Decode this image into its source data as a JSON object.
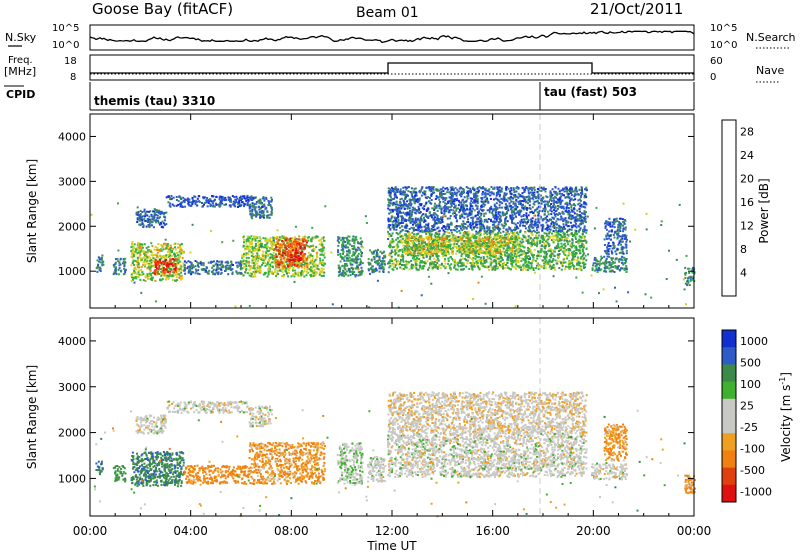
{
  "header": {
    "station": "Goose Bay (fitACF)",
    "beam": "Beam 01",
    "date": "21/Oct/2011"
  },
  "top_panels": {
    "nsky_label": "N.Sky",
    "nsearch_label": "N.Search",
    "nsky_ticks": [
      "10^5",
      "10^0"
    ],
    "nsearch_ticks": [
      "10^5",
      "10^0"
    ],
    "freq_label": "Freq.",
    "freq_unit": "[MHz]",
    "freq_ticks": [
      "18",
      "8"
    ],
    "nave_label": "Nave",
    "nave_ticks": [
      "60",
      "0"
    ],
    "cpid_label": "CPID",
    "cpid_1": "themis (tau) 3310",
    "cpid_2": "tau (fast) 503"
  },
  "x_axis": {
    "label": "Time UT",
    "ticks": [
      "00:00",
      "04:00",
      "08:00",
      "12:00",
      "16:00",
      "20:00",
      "00:00"
    ]
  },
  "colors": {
    "power": [
      "#1030e0",
      "#2d5cc8",
      "#3f8a5a",
      "#30b040",
      "#d8d020",
      "#f08a10",
      "#ee5010",
      "#e01010"
    ],
    "velocity_pos": [
      "#1030d0",
      "#2d5cc8",
      "#3a8a4a",
      "#40b030"
    ],
    "velocity_gs": "#c8c8c4",
    "velocity_neg": [
      "#f0a020",
      "#f08010",
      "#e04010",
      "#e01010"
    ]
  },
  "chart_data": [
    {
      "type": "heatmap",
      "title": "Power",
      "ylabel": "Slant Range [km]",
      "xlabel": "Time UT",
      "x_unit": "hours UT",
      "xlim": [
        0,
        24
      ],
      "ylim": [
        180,
        4500
      ],
      "yticks": [
        "1000",
        "2000",
        "3000",
        "4000"
      ],
      "colorbar": {
        "label": "Power [dB]",
        "ticks": [
          "4",
          "8",
          "12",
          "16",
          "20",
          "24",
          "28"
        ],
        "range": [
          0,
          30
        ]
      },
      "regions": [
        {
          "t0": 0.2,
          "t1": 0.5,
          "r0": 1000,
          "r1": 1350,
          "level": 8
        },
        {
          "t0": 0.9,
          "t1": 1.4,
          "r0": 950,
          "r1": 1300,
          "level": 8
        },
        {
          "t0": 1.6,
          "t1": 3.7,
          "r0": 800,
          "r1": 1650,
          "level": 16
        },
        {
          "t0": 2.5,
          "t1": 3.4,
          "r0": 950,
          "r1": 1300,
          "level": 27
        },
        {
          "t0": 1.8,
          "t1": 3.0,
          "r0": 2000,
          "r1": 2450,
          "level": 6
        },
        {
          "t0": 3.0,
          "t1": 6.5,
          "r0": 2450,
          "r1": 2700,
          "level": 5
        },
        {
          "t0": 6.3,
          "t1": 7.2,
          "r0": 2200,
          "r1": 2700,
          "level": 7
        },
        {
          "t0": 3.7,
          "t1": 6.0,
          "r0": 950,
          "r1": 1250,
          "level": 7
        },
        {
          "t0": 6.0,
          "t1": 9.3,
          "r0": 900,
          "r1": 1800,
          "level": 15
        },
        {
          "t0": 7.3,
          "t1": 8.6,
          "r0": 1100,
          "r1": 1750,
          "level": 24
        },
        {
          "t0": 7.8,
          "t1": 8.4,
          "r0": 1250,
          "r1": 1450,
          "level": 29
        },
        {
          "t0": 9.8,
          "t1": 10.8,
          "r0": 900,
          "r1": 1800,
          "level": 10
        },
        {
          "t0": 11.0,
          "t1": 11.7,
          "r0": 950,
          "r1": 1500,
          "level": 9
        },
        {
          "t0": 11.8,
          "t1": 19.7,
          "r0": 1050,
          "r1": 1900,
          "level": 13
        },
        {
          "t0": 12.5,
          "t1": 17.0,
          "r0": 1400,
          "r1": 1800,
          "level": 17
        },
        {
          "t0": 11.8,
          "t1": 19.7,
          "r0": 1900,
          "r1": 2900,
          "level": 6
        },
        {
          "t0": 19.9,
          "t1": 21.3,
          "r0": 1000,
          "r1": 1350,
          "level": 9
        },
        {
          "t0": 20.4,
          "t1": 21.3,
          "r0": 1400,
          "r1": 2200,
          "level": 6
        },
        {
          "t0": 23.6,
          "t1": 24.0,
          "r0": 700,
          "r1": 1100,
          "level": 9
        }
      ]
    },
    {
      "type": "heatmap",
      "title": "Velocity",
      "ylabel": "Slant Range [km]",
      "xlabel": "Time UT",
      "x_unit": "hours UT",
      "xlim": [
        0,
        24
      ],
      "ylim": [
        180,
        4500
      ],
      "yticks": [
        "1000",
        "2000",
        "3000",
        "4000"
      ],
      "colorbar": {
        "label": "Velocity [m s",
        "label_sup": "-1",
        "label_end": "]",
        "ticks": [
          "1000",
          "500",
          "100",
          "25",
          "-25",
          "-100",
          "-500",
          "-1000"
        ],
        "range": [
          -1000,
          1000
        ]
      },
      "regions": [
        {
          "t0": 0.2,
          "t1": 0.5,
          "r0": 1100,
          "r1": 1400,
          "value": 300
        },
        {
          "t0": 0.9,
          "t1": 1.4,
          "r0": 950,
          "r1": 1300,
          "value": 200
        },
        {
          "t0": 1.6,
          "t1": 3.7,
          "r0": 850,
          "r1": 1600,
          "value": 250
        },
        {
          "t0": 1.8,
          "t1": 3.0,
          "r0": 2000,
          "r1": 2400,
          "value": 0
        },
        {
          "t0": 3.0,
          "t1": 6.5,
          "r0": 2450,
          "r1": 2700,
          "value": 0
        },
        {
          "t0": 6.3,
          "t1": 7.2,
          "r0": 2150,
          "r1": 2600,
          "value": 0
        },
        {
          "t0": 3.7,
          "t1": 6.3,
          "r0": 900,
          "r1": 1300,
          "value": -200
        },
        {
          "t0": 6.3,
          "t1": 9.3,
          "r0": 900,
          "r1": 1800,
          "value": -150
        },
        {
          "t0": 9.8,
          "t1": 10.8,
          "r0": 900,
          "r1": 1800,
          "value": 50
        },
        {
          "t0": 11.0,
          "t1": 11.7,
          "r0": 950,
          "r1": 1500,
          "value": 0
        },
        {
          "t0": 11.8,
          "t1": 19.7,
          "r0": 1050,
          "r1": 2000,
          "value": 0
        },
        {
          "t0": 11.8,
          "t1": 19.7,
          "r0": 2000,
          "r1": 2900,
          "value": -30
        },
        {
          "t0": 19.9,
          "t1": 21.3,
          "r0": 1000,
          "r1": 1350,
          "value": 0
        },
        {
          "t0": 20.4,
          "t1": 21.3,
          "r0": 1400,
          "r1": 2200,
          "value": -150
        },
        {
          "t0": 23.6,
          "t1": 24.0,
          "r0": 700,
          "r1": 1100,
          "value": -200
        }
      ]
    }
  ]
}
